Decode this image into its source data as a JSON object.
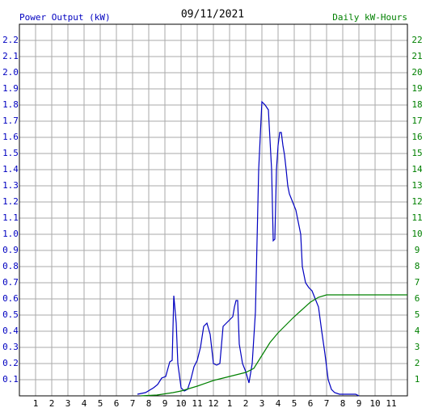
{
  "chart_data": {
    "type": "line",
    "title": "09/11/2021",
    "xlim": [
      0,
      24
    ],
    "xticks": [
      1,
      2,
      3,
      4,
      5,
      6,
      7,
      8,
      9,
      10,
      11,
      12,
      {
        "value": 13,
        "label": "1"
      },
      {
        "value": 14,
        "label": "2"
      },
      {
        "value": 15,
        "label": "3"
      },
      {
        "value": 16,
        "label": "4"
      },
      {
        "value": 17,
        "label": "5"
      },
      {
        "value": 18,
        "label": "6"
      },
      {
        "value": 19,
        "label": "7"
      },
      {
        "value": 20,
        "label": "8"
      },
      {
        "value": 21,
        "label": "9"
      },
      {
        "value": 22,
        "label": "10"
      },
      {
        "value": 23,
        "label": "11"
      }
    ],
    "ylim": [
      0,
      2.3
    ],
    "yticks": [
      0.1,
      0.2,
      0.3,
      0.4,
      0.5,
      0.6,
      0.7,
      0.8,
      0.9,
      {
        "value": 1,
        "label": "1.0"
      },
      1.1,
      1.2,
      1.3,
      1.4,
      1.5,
      1.6,
      1.7,
      1.8,
      1.9,
      {
        "value": 2,
        "label": "2.0"
      },
      2.1,
      2.2
    ],
    "y2lim": [
      0,
      23
    ],
    "y2ticks": [
      1,
      2,
      3,
      4,
      5,
      6,
      7,
      8,
      9,
      10,
      11,
      12,
      13,
      14,
      15,
      16,
      17,
      18,
      19,
      20,
      21,
      22
    ],
    "grid": true,
    "series": [
      {
        "name": "Power Output (kW)",
        "color": "#0000c0",
        "x": [
          7.3,
          7.8,
          8.3,
          8.55,
          8.8,
          9.05,
          9.3,
          9.45,
          9.55,
          9.7,
          9.8,
          10,
          10.2,
          10.4,
          10.6,
          10.8,
          11,
          11.2,
          11.4,
          11.6,
          11.8,
          12,
          12.2,
          12.4,
          12.6,
          12.8,
          13,
          13.2,
          13.3,
          13.4,
          13.5,
          13.6,
          13.8,
          14,
          14.2,
          14.4,
          14.6,
          14.8,
          15,
          15.2,
          15.4,
          15.6,
          15.7,
          15.8,
          15.9,
          16,
          16.1,
          16.2,
          16.3,
          16.4,
          16.5,
          16.6,
          16.7,
          16.9,
          17.1,
          17.2,
          17.4,
          17.5,
          17.7,
          17.9,
          18.1,
          18.3,
          18.5,
          18.7,
          18.9,
          19.1,
          19.3,
          19.5,
          19.8,
          20.8,
          21
        ],
        "values": [
          0.01,
          0.02,
          0.05,
          0.07,
          0.11,
          0.12,
          0.21,
          0.22,
          0.62,
          0.45,
          0.2,
          0.05,
          0.03,
          0.04,
          0.1,
          0.18,
          0.22,
          0.3,
          0.43,
          0.45,
          0.38,
          0.2,
          0.19,
          0.2,
          0.43,
          0.45,
          0.47,
          0.49,
          0.55,
          0.59,
          0.59,
          0.32,
          0.2,
          0.15,
          0.08,
          0.2,
          0.52,
          1.4,
          1.82,
          1.8,
          1.77,
          1.4,
          0.96,
          0.97,
          1.4,
          1.55,
          1.63,
          1.63,
          1.55,
          1.49,
          1.4,
          1.3,
          1.25,
          1.2,
          1.15,
          1.1,
          1.0,
          0.8,
          0.7,
          0.67,
          0.65,
          0.6,
          0.55,
          0.4,
          0.26,
          0.1,
          0.04,
          0.02,
          0.01,
          0.01,
          0
        ]
      },
      {
        "name": "Daily kW-Hours",
        "color": "#008000",
        "axis": "y2",
        "x": [
          7.5,
          8.5,
          9.5,
          10,
          11,
          12,
          13,
          14,
          14.5,
          15,
          15.5,
          16,
          16.5,
          17,
          17.5,
          18,
          18.5,
          19,
          24
        ],
        "values": [
          0,
          0.05,
          0.2,
          0.3,
          0.6,
          0.95,
          1.2,
          1.45,
          1.7,
          2.5,
          3.3,
          3.9,
          4.4,
          4.9,
          5.35,
          5.8,
          6.1,
          6.25,
          6.25
        ]
      }
    ]
  }
}
